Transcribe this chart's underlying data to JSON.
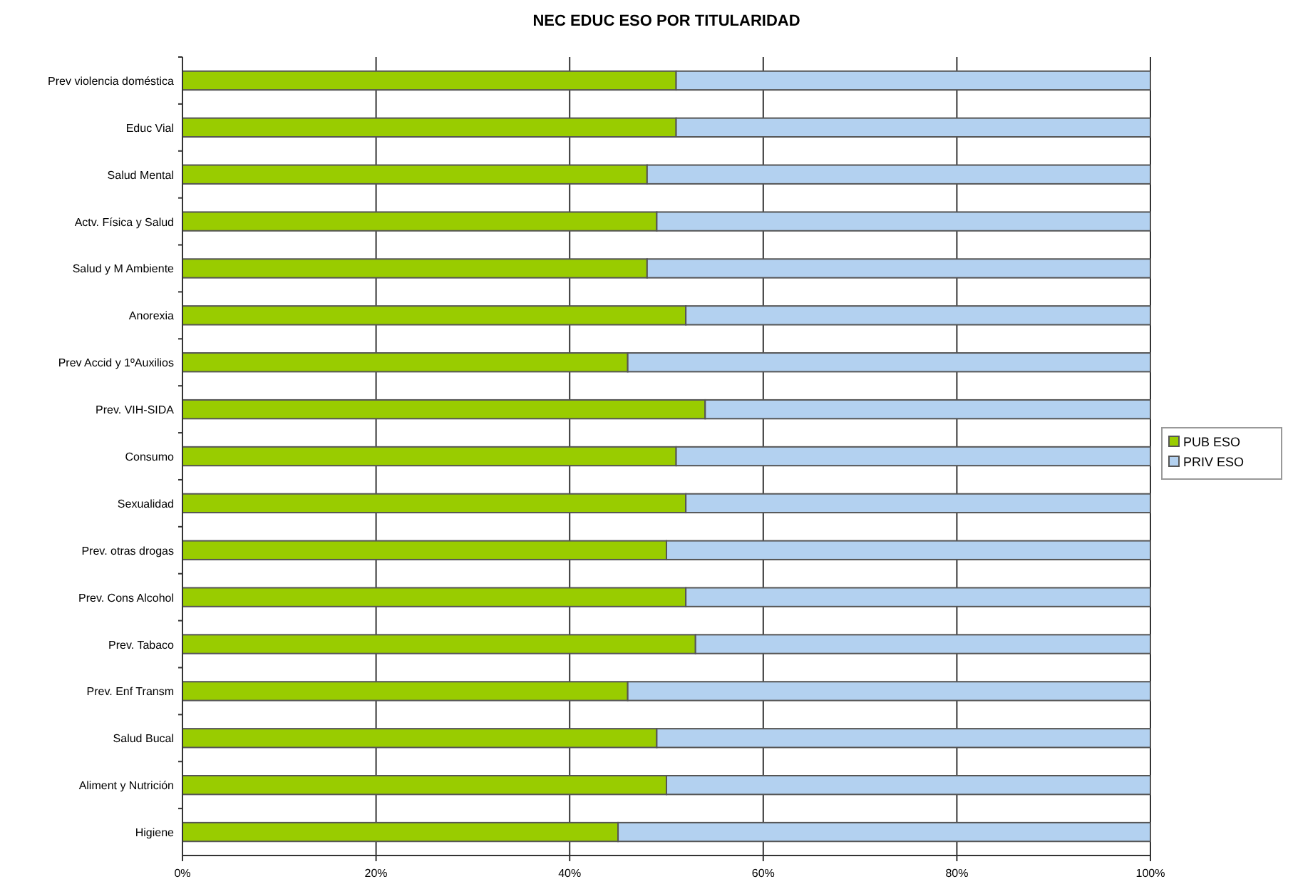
{
  "chart_data": {
    "type": "bar",
    "title": "NEC EDUC ESO POR TITULARIDAD",
    "orientation": "horizontal",
    "stacked": true,
    "categories": [
      "Prev violencia doméstica",
      "Educ Vial",
      "Salud Mental",
      "Actv. Física y Salud",
      "Salud y M Ambiente",
      "Anorexia",
      "Prev Accid y 1ºAuxilios",
      "Prev. VIH-SIDA",
      "Consumo",
      "Sexualidad",
      "Prev. otras drogas",
      "Prev. Cons Alcohol",
      "Prev. Tabaco",
      "Prev. Enf Transm",
      "Salud Bucal",
      "Aliment y Nutrición",
      "Higiene"
    ],
    "series": [
      {
        "name": "PUB ESO",
        "color": "#99cc00",
        "values": [
          51,
          51,
          48,
          49,
          48,
          52,
          46,
          54,
          51,
          52,
          50,
          52,
          53,
          46,
          49,
          50,
          45
        ]
      },
      {
        "name": "PRIV ESO",
        "color": "#b3d1f0",
        "values": [
          49,
          49,
          52,
          51,
          52,
          48,
          54,
          46,
          49,
          48,
          50,
          48,
          47,
          54,
          51,
          50,
          55
        ]
      }
    ],
    "xlim": [
      0,
      100
    ],
    "xticks": [
      {
        "value": 0,
        "label": "0%"
      },
      {
        "value": 20,
        "label": "20%"
      },
      {
        "value": 40,
        "label": "40%"
      },
      {
        "value": 60,
        "label": "60%"
      },
      {
        "value": 80,
        "label": "80%"
      },
      {
        "value": 100,
        "label": "100%"
      }
    ],
    "grid": "x",
    "legend": "right"
  }
}
